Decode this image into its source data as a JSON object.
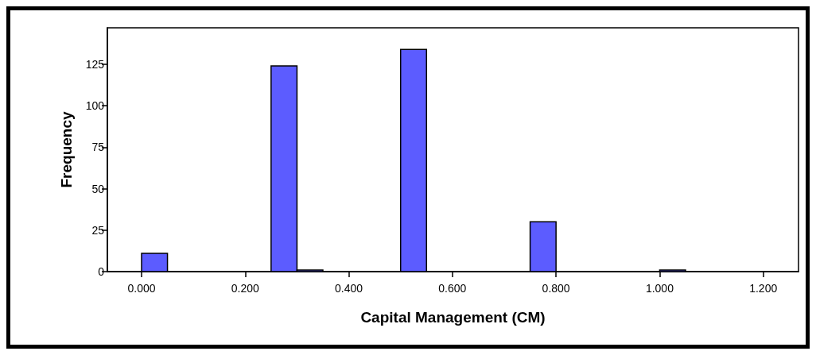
{
  "chart_data": {
    "type": "histogram",
    "xlabel": "Capital Management (CM)",
    "ylabel": "Frequency",
    "bins": [
      0,
      0.05,
      0.1,
      0.15,
      0.2,
      0.25,
      0.3,
      0.35,
      0.4,
      0.45,
      0.5,
      0.55,
      0.6,
      0.65,
      0.7,
      0.75,
      0.8,
      0.85,
      0.9,
      0.95,
      1.0,
      1.05
    ],
    "values": [
      11,
      0,
      0,
      0,
      0,
      124,
      1,
      0,
      0,
      0,
      134,
      0,
      0,
      0,
      0,
      30,
      0,
      0,
      0,
      0,
      1
    ],
    "color": "#5c5cff",
    "xlim": [
      -0.066,
      1.268
    ],
    "xticks": [
      {
        "value": 0,
        "label": "0.000"
      },
      {
        "value": 0.2,
        "label": "0.200"
      },
      {
        "value": 0.4,
        "label": "0.400"
      },
      {
        "value": 0.6,
        "label": "0.600"
      },
      {
        "value": 0.8,
        "label": "0.800"
      },
      {
        "value": 1.0,
        "label": "1.000"
      },
      {
        "value": 1.2,
        "label": "1.200"
      }
    ],
    "ylim": [
      0,
      147
    ],
    "yticks": [
      0,
      25,
      50,
      75,
      100,
      125
    ],
    "grid": false
  }
}
